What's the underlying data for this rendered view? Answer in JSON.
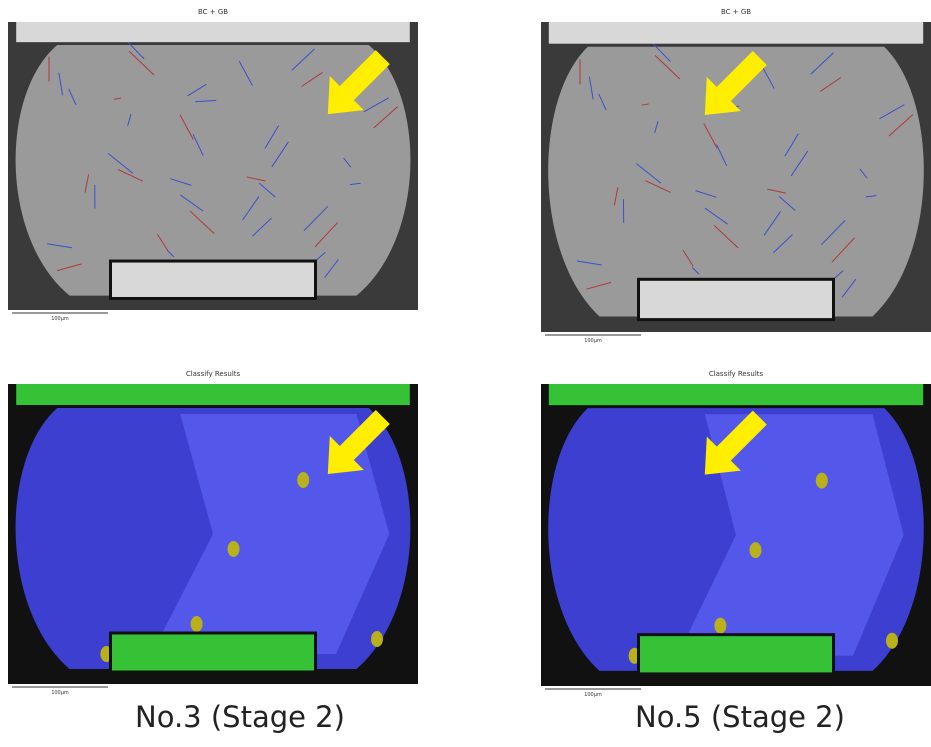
{
  "panels": [
    {
      "title": "BC + GB",
      "scale": "100µm"
    },
    {
      "title": "BC + GB",
      "scale": "100µm"
    },
    {
      "title": "Classify Results",
      "scale": "100µm"
    },
    {
      "title": "Classify Results",
      "scale": "100µm"
    }
  ],
  "captions": [
    "No.3 (Stage 2)",
    "No.5 (Stage 2)"
  ]
}
